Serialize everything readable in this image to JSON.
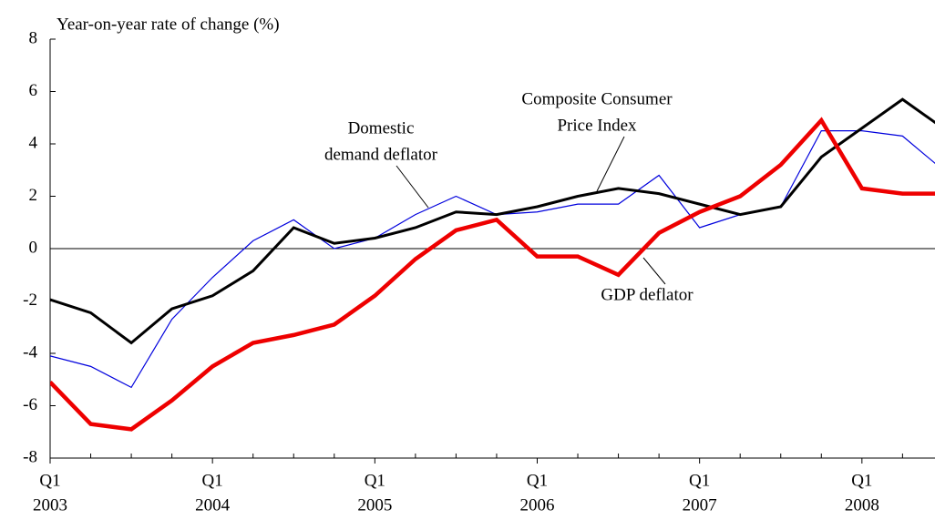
{
  "chart_data": {
    "type": "line",
    "ylabel": "Year-on-year rate of change (%)",
    "categories": [
      {
        "quarter": "Q1",
        "year": "2003"
      },
      null,
      null,
      null,
      {
        "quarter": "Q1",
        "year": "2004"
      },
      null,
      null,
      null,
      {
        "quarter": "Q1",
        "year": "2005"
      },
      null,
      null,
      null,
      {
        "quarter": "Q1",
        "year": "2006"
      },
      null,
      null,
      null,
      {
        "quarter": "Q1",
        "year": "2007"
      },
      null,
      null,
      null,
      {
        "quarter": "Q1",
        "year": "2008"
      },
      null,
      null
    ],
    "xlim": [
      0,
      21.8
    ],
    "ylim": [
      -8,
      8
    ],
    "yticks": [
      -8,
      -6,
      -4,
      -2,
      0,
      2,
      4,
      6,
      8
    ],
    "series": [
      {
        "color": "#0000dd",
        "width": 1.2,
        "values": [
          -4.1,
          -4.5,
          -5.3,
          -2.7,
          -1.1,
          0.3,
          1.1,
          0.0,
          0.4,
          1.3,
          2.0,
          1.3,
          1.4,
          1.7,
          1.7,
          2.8,
          0.8,
          1.3,
          1.6,
          4.5,
          4.5,
          4.3,
          3.0
        ]
      },
      {
        "color": "#000000",
        "width": 3,
        "values": [
          -1.95,
          -2.45,
          -3.6,
          -2.3,
          -1.8,
          -0.85,
          0.8,
          0.2,
          0.4,
          0.8,
          1.4,
          1.3,
          1.6,
          2.0,
          2.3,
          2.1,
          1.7,
          1.3,
          1.6,
          3.5,
          4.6,
          5.7,
          4.6
        ]
      },
      {
        "color": "#ee0000",
        "width": 4.5,
        "values": [
          -5.1,
          -6.7,
          -6.9,
          -5.8,
          -4.5,
          -3.6,
          -3.3,
          -2.9,
          -1.8,
          -0.4,
          0.7,
          1.1,
          -0.3,
          -0.3,
          -1.0,
          0.6,
          1.4,
          2.0,
          3.2,
          4.9,
          2.3,
          2.1,
          2.1
        ]
      }
    ],
    "annotations": [
      {
        "lines": [
          "Domestic",
          "demand deflator"
        ]
      },
      {
        "lines": [
          "Composite Consumer",
          "Price Index"
        ]
      },
      {
        "lines": [
          "GDP deflator"
        ]
      }
    ]
  }
}
